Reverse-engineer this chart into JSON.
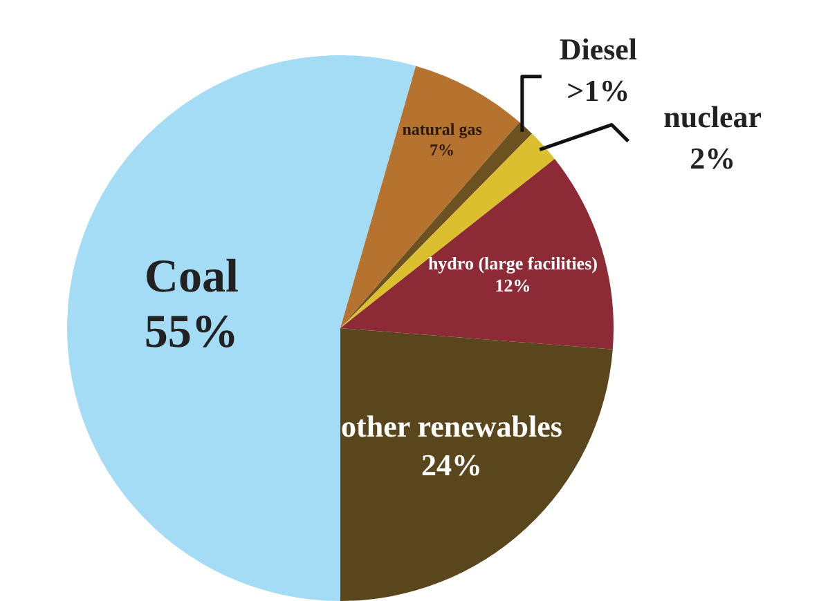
{
  "chart_data": {
    "type": "pie",
    "categories": [
      "Coal",
      "natural gas",
      "Diesel",
      "nuclear",
      "hydro (large facilities)",
      "other renewables"
    ],
    "values": [
      55,
      7,
      1,
      2,
      12,
      24
    ],
    "value_labels": [
      "55%",
      "7%",
      ">1%",
      "2%",
      "12%",
      "24%"
    ],
    "colors": [
      "#a3dcf4",
      "#b5732f",
      "#6b5220",
      "#dcbf2e",
      "#8c2a35",
      "#5a461c"
    ],
    "legend": false
  }
}
